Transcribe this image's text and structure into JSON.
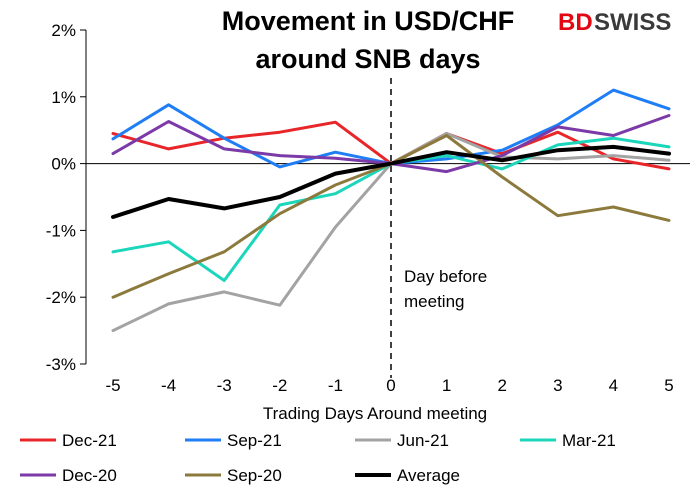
{
  "chart_data": {
    "type": "line",
    "title_lines": [
      "Movement in USD/CHF",
      "around SNB days"
    ],
    "xlabel": "Trading Days Around meeting",
    "ylabel": "",
    "x": [
      -5,
      -4,
      -3,
      -2,
      -1,
      0,
      1,
      2,
      3,
      4,
      5
    ],
    "ylim": [
      -3,
      2
    ],
    "y_ticks": [
      "-3%",
      "-2%",
      "-1%",
      "0%",
      "1%",
      "2%"
    ],
    "x_ticks": [
      "-5",
      "-4",
      "-3",
      "-2",
      "-1",
      "0",
      "1",
      "2",
      "3",
      "4",
      "5"
    ],
    "grid": false,
    "legend_placement": "bottom",
    "annotation": [
      "Day before",
      "meeting"
    ],
    "series": [
      {
        "name": "Dec-21",
        "color": "#e8262a",
        "width": 3,
        "values": [
          0.45,
          0.22,
          0.38,
          0.47,
          0.62,
          0.0,
          0.45,
          0.15,
          0.47,
          0.07,
          -0.08
        ]
      },
      {
        "name": "Sep-21",
        "color": "#1f7ef5",
        "width": 3,
        "values": [
          0.37,
          0.88,
          0.38,
          -0.05,
          0.17,
          0.0,
          0.07,
          0.2,
          0.58,
          1.1,
          0.82
        ]
      },
      {
        "name": "Jun-21",
        "color": "#a3a3a3",
        "width": 3,
        "values": [
          -2.5,
          -2.1,
          -1.92,
          -2.12,
          -0.95,
          0.0,
          0.45,
          0.1,
          0.07,
          0.12,
          0.05
        ]
      },
      {
        "name": "Mar-21",
        "color": "#1bd6bb",
        "width": 3,
        "values": [
          -1.32,
          -1.17,
          -1.75,
          -0.62,
          -0.45,
          0.0,
          0.12,
          -0.08,
          0.28,
          0.38,
          0.25
        ]
      },
      {
        "name": "Dec-20",
        "color": "#7b3aa8",
        "width": 3,
        "values": [
          0.15,
          0.63,
          0.22,
          0.12,
          0.08,
          0.0,
          -0.12,
          0.12,
          0.55,
          0.42,
          0.72
        ]
      },
      {
        "name": "Sep-20",
        "color": "#8c7a3d",
        "width": 3,
        "values": [
          -2.0,
          -1.65,
          -1.32,
          -0.75,
          -0.32,
          0.0,
          0.42,
          -0.2,
          -0.78,
          -0.65,
          -0.85
        ]
      },
      {
        "name": "Average",
        "color": "#000000",
        "width": 4,
        "values": [
          -0.8,
          -0.53,
          -0.67,
          -0.5,
          -0.15,
          0.0,
          0.17,
          0.05,
          0.2,
          0.25,
          0.15
        ]
      }
    ]
  },
  "brand": {
    "text_bd": "BD",
    "text_swiss": "SWISS",
    "color_bd": "#e30613",
    "color_swiss": "#3a3a3a"
  }
}
